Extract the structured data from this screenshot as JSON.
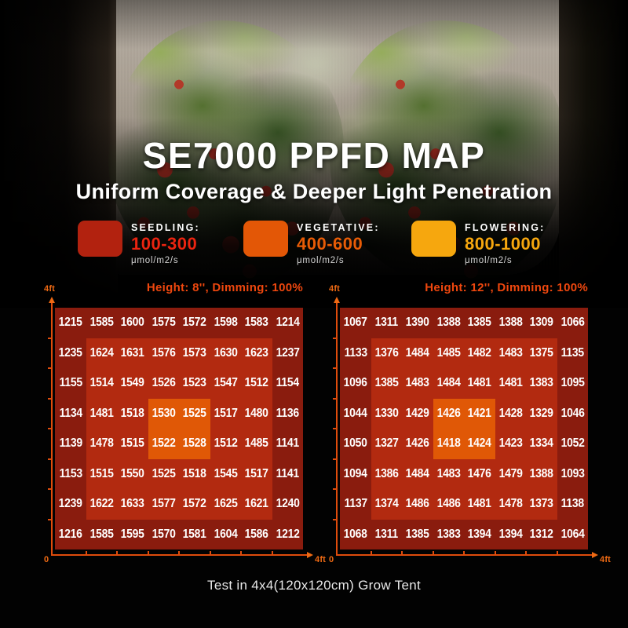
{
  "title": "SE7000 PPFD MAP",
  "subtitle": "Uniform Coverage & Deeper Light Penetration",
  "legend": {
    "items": [
      {
        "label": "SEEDLING:",
        "range": "100-300",
        "unit": "μmol/m2/s",
        "swatch_color": "#b2220f",
        "range_color": "#ea2410"
      },
      {
        "label": "VEGETATIVE:",
        "range": "400-600",
        "unit": "μmol/m2/s",
        "swatch_color": "#e35706",
        "range_color": "#e85c06"
      },
      {
        "label": "FLOWERING:",
        "range": "800-1000",
        "unit": "μmol/m2/s",
        "swatch_color": "#f6a70e",
        "range_color": "#f6a70e"
      }
    ]
  },
  "colors": {
    "axis": "#df4c0c",
    "panel_title": "#ef470e",
    "cell_text": "#ffffff"
  },
  "footer": "Test in 4x4(120x120cm) Grow Tent",
  "chart_data": [
    {
      "type": "heatmap",
      "title": "Height: 8'', Dimming: 100%",
      "rows": 8,
      "cols": 8,
      "x_axis": {
        "min_label": "0",
        "max_label": "4ft"
      },
      "y_axis": {
        "max_label": "4ft"
      },
      "unit": "μmol/m2/s",
      "values": [
        [
          1215,
          1585,
          1600,
          1575,
          1572,
          1598,
          1583,
          1214
        ],
        [
          1235,
          1624,
          1631,
          1576,
          1573,
          1630,
          1623,
          1237
        ],
        [
          1155,
          1514,
          1549,
          1526,
          1523,
          1547,
          1512,
          1154
        ],
        [
          1134,
          1481,
          1518,
          1530,
          1525,
          1517,
          1480,
          1136
        ],
        [
          1139,
          1478,
          1515,
          1522,
          1528,
          1512,
          1485,
          1141
        ],
        [
          1153,
          1515,
          1550,
          1525,
          1518,
          1545,
          1517,
          1141
        ],
        [
          1239,
          1622,
          1633,
          1577,
          1572,
          1625,
          1621,
          1240
        ],
        [
          1216,
          1585,
          1595,
          1570,
          1581,
          1604,
          1586,
          1212
        ]
      ],
      "zones": {
        "outer": {
          "color": "#8a1c0e",
          "cells": "border ring"
        },
        "middle": {
          "color": "#b22a10",
          "cells": "rows 2-7, cols 2-7"
        },
        "center": {
          "color": "#e05806",
          "cells": "rows 4-5, cols 4-5"
        }
      }
    },
    {
      "type": "heatmap",
      "title": "Height: 12'', Dimming: 100%",
      "rows": 8,
      "cols": 8,
      "x_axis": {
        "min_label": "0",
        "max_label": "4ft"
      },
      "y_axis": {
        "max_label": "4ft"
      },
      "unit": "μmol/m2/s",
      "values": [
        [
          1067,
          1311,
          1390,
          1388,
          1385,
          1388,
          1309,
          1066
        ],
        [
          1133,
          1376,
          1484,
          1485,
          1482,
          1483,
          1375,
          1135
        ],
        [
          1096,
          1385,
          1483,
          1484,
          1481,
          1481,
          1383,
          1095
        ],
        [
          1044,
          1330,
          1429,
          1426,
          1421,
          1428,
          1329,
          1046
        ],
        [
          1050,
          1327,
          1426,
          1418,
          1424,
          1423,
          1334,
          1052
        ],
        [
          1094,
          1386,
          1484,
          1483,
          1476,
          1479,
          1388,
          1093
        ],
        [
          1137,
          1374,
          1486,
          1486,
          1481,
          1478,
          1373,
          1138
        ],
        [
          1068,
          1311,
          1385,
          1383,
          1394,
          1394,
          1312,
          1064
        ]
      ],
      "zones": {
        "outer": {
          "color": "#8a1c0e",
          "cells": "border ring"
        },
        "middle": {
          "color": "#b22a10",
          "cells": "rows 2-7, cols 2-7"
        },
        "center": {
          "color": "#e05806",
          "cells": "rows 4-5, cols 4-5"
        }
      }
    }
  ]
}
